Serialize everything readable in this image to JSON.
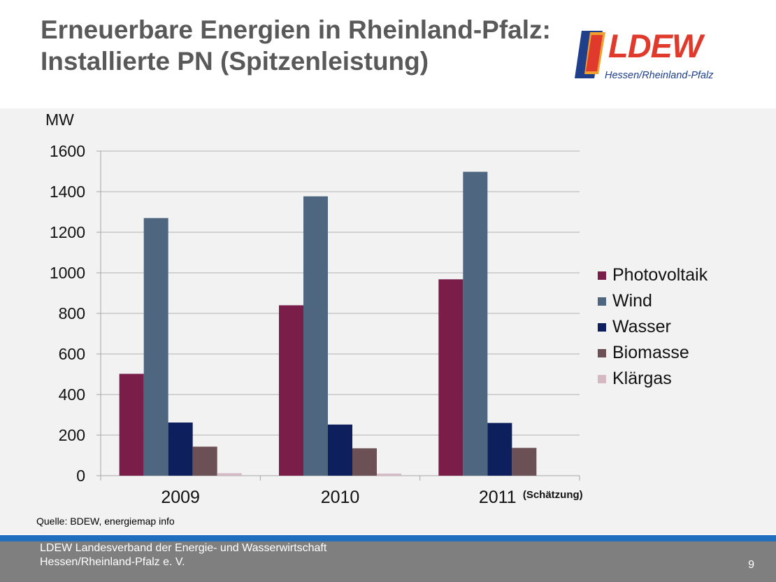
{
  "slide": {
    "title": "Erneuerbare Energien in Rheinland-Pfalz: Installierte PN (Spitzenleistung)",
    "logo_text": "LDEW",
    "logo_sub": "Hessen/Rheinland-Pfalz",
    "source": "Quelle: BDEW, energiemap info",
    "footer_line1": "LDEW Landesverband der Energie- und Wasserwirtschaft",
    "footer_line2": "Hessen/Rheinland-Pfalz  e. V.",
    "page_number": "9"
  },
  "chart_data": {
    "type": "bar",
    "ylabel": "MW",
    "ylim": [
      0,
      1600
    ],
    "yticks": [
      0,
      200,
      400,
      600,
      800,
      1000,
      1200,
      1400,
      1600
    ],
    "grid": true,
    "legend_position": "right",
    "categories": [
      "2009",
      "2010",
      "2011"
    ],
    "category_notes": [
      "",
      "",
      "(Schätzung)"
    ],
    "series": [
      {
        "name": "Photovoltaik",
        "color": "#7b1d49",
        "values": [
          502,
          840,
          968
        ]
      },
      {
        "name": "Wind",
        "color": "#4f6681",
        "values": [
          1270,
          1377,
          1498
        ]
      },
      {
        "name": "Wasser",
        "color": "#0d1f5c",
        "values": [
          262,
          252,
          260
        ]
      },
      {
        "name": "Biomasse",
        "color": "#6b5055",
        "values": [
          143,
          135,
          137
        ]
      },
      {
        "name": "Klärgas",
        "color": "#d4b8c3",
        "values": [
          12,
          10,
          0
        ]
      }
    ]
  }
}
